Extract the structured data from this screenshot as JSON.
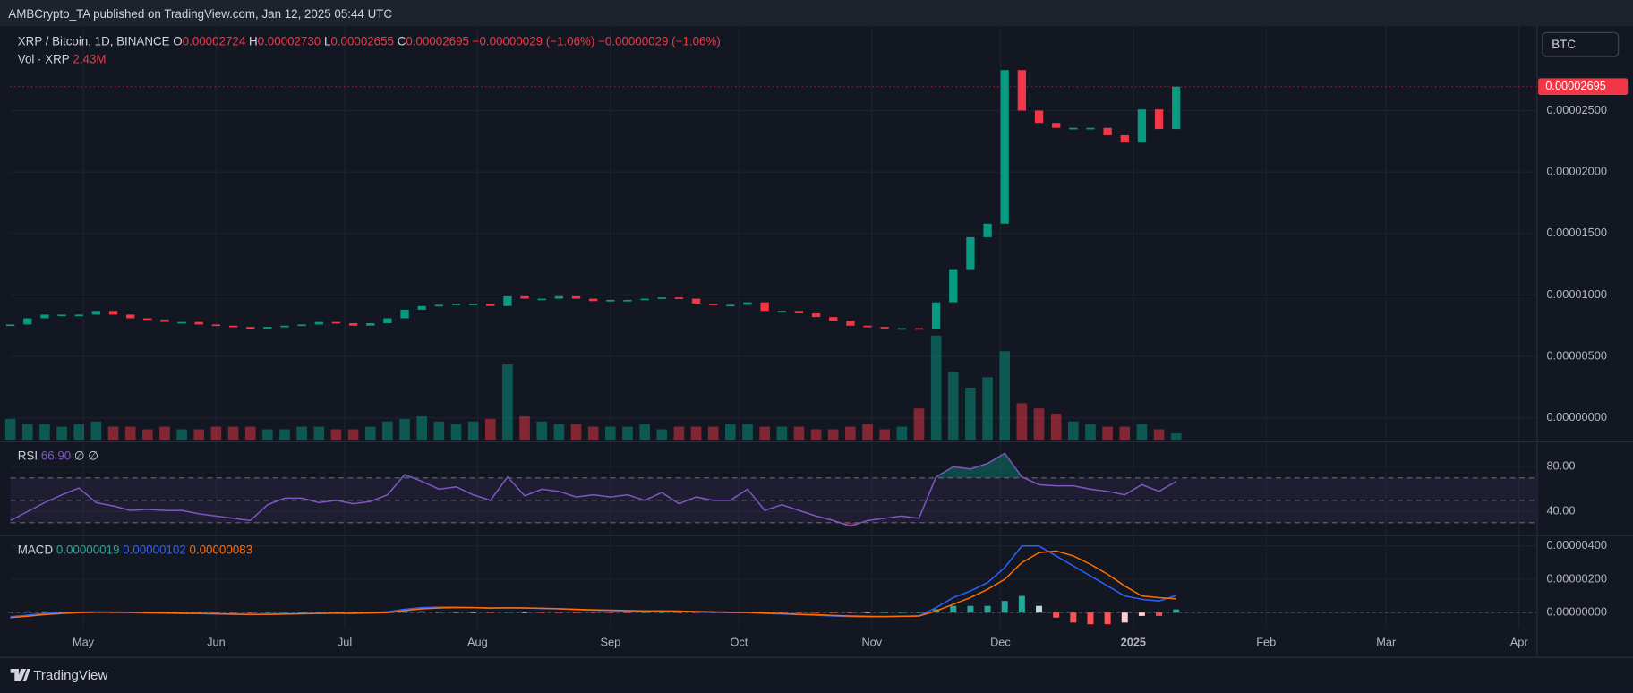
{
  "header": {
    "published": "AMBCrypto_TA published on TradingView.com, Jan 12, 2025 05:44 UTC",
    "symbol": "XRP / Bitcoin, 1D, BINANCE",
    "ohlc": [
      {
        "key": "O",
        "value": "0.00002724"
      },
      {
        "key": "H",
        "value": "0.00002730"
      },
      {
        "key": "L",
        "value": "0.00002655"
      },
      {
        "key": "C",
        "value": "0.00002695"
      }
    ],
    "change": [
      "−0.00000029 (−1.06%)",
      "−0.00000029 (−1.06%)"
    ],
    "volume_label": "Vol · XRP",
    "volume_value": "2.43M",
    "currency_button": "BTC"
  },
  "chart_data": [
    {
      "type": "candlestick",
      "up_color": "#089981",
      "down_color": "#f23645",
      "x": [
        0,
        4,
        8,
        12,
        16,
        20,
        24,
        28,
        32,
        36,
        40,
        44,
        48,
        52,
        56,
        60,
        64,
        68,
        72,
        76,
        80,
        84,
        88,
        92,
        96,
        100,
        104,
        108,
        112,
        116,
        120,
        124,
        128,
        132,
        136,
        140,
        144,
        148,
        152,
        156,
        160,
        164,
        168,
        172,
        176,
        180,
        184,
        188,
        192,
        196,
        200,
        204,
        208,
        212,
        216,
        220,
        224,
        228,
        232,
        236,
        240,
        244,
        248,
        252,
        256,
        260,
        264,
        268,
        272
      ],
      "values": [
        7.6e-06,
        8.1e-06,
        8.4e-06,
        8.4e-06,
        8.4e-06,
        8.7e-06,
        8.4e-06,
        8.1e-06,
        8e-06,
        7.8e-06,
        7.8e-06,
        7.6e-06,
        7.5e-06,
        7.4e-06,
        7.2e-06,
        7.4e-06,
        7.5e-06,
        7.6e-06,
        7.8e-06,
        7.7e-06,
        7.5e-06,
        7.7e-06,
        8.1e-06,
        8.8e-06,
        9.1e-06,
        9.2e-06,
        9.3e-06,
        9.3e-06,
        9.1e-06,
        9.9e-06,
        9.7e-06,
        9.7e-06,
        9.9e-06,
        9.7e-06,
        9.5e-06,
        9.6e-06,
        9.6e-06,
        9.7e-06,
        9.8e-06,
        9.7e-06,
        9.3e-06,
        9.2e-06,
        9.2e-06,
        9.4e-06,
        8.7e-06,
        8.7e-06,
        8.5e-06,
        8.2e-06,
        7.9e-06,
        7.5e-06,
        7.4e-06,
        7.3e-06,
        7.3e-06,
        7.2e-06,
        9.4e-06,
        1.21e-05,
        1.47e-05,
        1.58e-05,
        2.83e-05,
        2.5e-05,
        2.4e-05,
        2.36e-05,
        2.36e-05,
        2.36e-05,
        2.3e-05,
        2.24e-05,
        2.51e-05,
        2.35e-05,
        2.695e-05
      ],
      "volume": [
        8000000.0,
        6000000.0,
        6000000.0,
        5000000.0,
        6000000.0,
        7000000.0,
        5000000.0,
        5000000.0,
        4000000.0,
        5000000.0,
        4000000.0,
        4000000.0,
        5000000.0,
        5000000.0,
        5000000.0,
        4000000.0,
        4000000.0,
        5000000.0,
        5000000.0,
        4000000.0,
        4000000.0,
        5000000.0,
        7000000.0,
        8000000.0,
        9000000.0,
        7000000.0,
        6000000.0,
        7000000.0,
        8000000.0,
        29000000.0,
        9000000.0,
        7000000.0,
        6000000.0,
        6000000.0,
        5000000.0,
        5000000.0,
        5000000.0,
        6000000.0,
        4000000.0,
        5000000.0,
        5000000.0,
        5000000.0,
        6000000.0,
        6000000.0,
        5000000.0,
        5000000.0,
        5000000.0,
        4000000.0,
        4000000.0,
        5000000.0,
        6000000.0,
        4000000.0,
        5000000.0,
        12000000.0,
        40000000.0,
        26000000.0,
        20000000.0,
        24000000.0,
        34000000.0,
        14000000.0,
        12000000.0,
        10000000.0,
        7000000.0,
        6000000.0,
        5000000.0,
        5000000.0,
        6000000.0,
        4000000.0,
        2430000.0
      ],
      "last_price_label": "0.00002695",
      "xlim": [
        0,
        356
      ],
      "xticks": [
        {
          "value": 17,
          "label": "May"
        },
        {
          "value": 48,
          "label": "Jun"
        },
        {
          "value": 78,
          "label": "Jul"
        },
        {
          "value": 109,
          "label": "Aug"
        },
        {
          "value": 140,
          "label": "Sep"
        },
        {
          "value": 170,
          "label": "Oct"
        },
        {
          "value": 201,
          "label": "Nov"
        },
        {
          "value": 231,
          "label": "Dec"
        },
        {
          "value": 262,
          "label": "2025"
        },
        {
          "value": 293,
          "label": "Feb"
        },
        {
          "value": 321,
          "label": "Mar"
        },
        {
          "value": 352,
          "label": "Apr"
        }
      ],
      "ylim": [
        -1.86e-06,
        3.186e-05
      ],
      "yticks": [
        {
          "value": 0,
          "label": "0.00000000"
        },
        {
          "value": 5e-06,
          "label": "0.00000500"
        },
        {
          "value": 1e-05,
          "label": "0.00001000"
        },
        {
          "value": 1.5e-05,
          "label": "0.00001500"
        },
        {
          "value": 2e-05,
          "label": "0.00002000"
        },
        {
          "value": 2.5e-05,
          "label": "0.00002500"
        }
      ],
      "grid": true
    },
    {
      "type": "line",
      "title": "RSI",
      "legend_values": [
        "66.90",
        "∅",
        "∅"
      ],
      "series": [
        {
          "color": "#7e57c2",
          "values": [
            32,
            40,
            48,
            55,
            61,
            48,
            45,
            41,
            42,
            41,
            41,
            38,
            36,
            34,
            32,
            46,
            52,
            52,
            48,
            50,
            47,
            49,
            55,
            73,
            67,
            60,
            62,
            55,
            50,
            71,
            54,
            60,
            58,
            53,
            55,
            53,
            55,
            50,
            57,
            47,
            53,
            50,
            50,
            60,
            41,
            46,
            41,
            36,
            32,
            27,
            32,
            34,
            36,
            34,
            71,
            80,
            78,
            83,
            92,
            71,
            64,
            63,
            63,
            60,
            58,
            55,
            64,
            58,
            66.9
          ]
        }
      ],
      "band_levels": [
        30,
        50,
        70
      ],
      "ylim": [
        19.5,
        101.4
      ],
      "yticks": [
        {
          "value": 80,
          "label": "80.00"
        },
        {
          "value": 40,
          "label": "40.00"
        }
      ],
      "grid": true
    },
    {
      "type": "line",
      "title": "MACD",
      "series": [
        {
          "kind": "histogram",
          "color": "#26a69a",
          "legend_label": "0.00000019",
          "values": [
            5e-08,
            7e-08,
            7e-08,
            5e-08,
            3e-08,
            2e-08,
            -1e-08,
            -2e-08,
            -2e-08,
            -2e-08,
            -1e-08,
            -1e-08,
            -1e-08,
            -1e-08,
            -2e-08,
            0,
            1e-08,
            1e-08,
            1e-08,
            0,
            -1e-08,
            1e-08,
            5e-08,
            8e-08,
            8e-08,
            4e-08,
            2e-08,
            0,
            -2e-08,
            2e-08,
            0,
            -1e-08,
            -1e-08,
            -2e-08,
            -2e-08,
            -2e-08,
            -2e-08,
            0,
            0,
            -1e-08,
            -2e-08,
            -2e-08,
            -2e-08,
            -1e-08,
            -2e-08,
            -2e-08,
            -2e-08,
            -3e-08,
            -3e-08,
            -3e-08,
            -2e-08,
            0,
            1e-08,
            1e-08,
            2e-07,
            4e-07,
            4e-07,
            4e-07,
            7e-07,
            1e-06,
            4e-07,
            -3e-07,
            -6e-07,
            -7e-07,
            -7e-07,
            -6e-07,
            -2e-07,
            -2e-07,
            1.9e-07
          ]
        },
        {
          "kind": "line",
          "color": "#2962ff",
          "legend_label": "0.00000102",
          "values": [
            -2.5e-07,
            -1.5e-07,
            -5e-08,
            0,
            3e-08,
            4e-08,
            2e-08,
            0,
            -2e-08,
            -4e-08,
            -5e-08,
            -6e-08,
            -8e-08,
            -1e-07,
            -1.2e-07,
            -1e-07,
            -8e-08,
            -6e-08,
            -4e-08,
            -4e-08,
            -5e-08,
            -2e-08,
            5e-08,
            2e-07,
            3e-07,
            3.2e-07,
            3.2e-07,
            3e-07,
            2.6e-07,
            3e-07,
            2.8e-07,
            2.5e-07,
            2.2e-07,
            1.8e-07,
            1.4e-07,
            1.2e-07,
            1e-07,
            1e-07,
            1e-07,
            8e-08,
            4e-08,
            2e-08,
            0,
            0,
            -5e-08,
            -8e-08,
            -1.2e-07,
            -1.6e-07,
            -2e-07,
            -2.4e-07,
            -2.5e-07,
            -2.4e-07,
            -2.2e-07,
            -2e-07,
            3e-07,
            9e-07,
            1.3e-06,
            1.8e-06,
            2.7e-06,
            4e-06,
            4e-06,
            3.4e-06,
            2.8e-06,
            2.2e-06,
            1.6e-06,
            1e-06,
            8e-07,
            7e-07,
            1.02e-06
          ]
        },
        {
          "kind": "line",
          "color": "#ff6d00",
          "legend_label": "0.00000083",
          "values": [
            -3e-07,
            -2.2e-07,
            -1.2e-07,
            -5e-08,
            0,
            2e-08,
            3e-08,
            2e-08,
            0,
            -2e-08,
            -4e-08,
            -5e-08,
            -7e-08,
            -9e-08,
            -1e-07,
            -1e-07,
            -9e-08,
            -7e-08,
            -5e-08,
            -4e-08,
            -4e-08,
            -3e-08,
            0,
            1.2e-07,
            2.2e-07,
            2.8e-07,
            3e-07,
            3e-07,
            2.8e-07,
            2.8e-07,
            2.8e-07,
            2.6e-07,
            2.3e-07,
            2e-07,
            1.6e-07,
            1.4e-07,
            1.2e-07,
            1e-07,
            1e-07,
            9e-08,
            6e-08,
            4e-08,
            2e-08,
            1e-08,
            -3e-08,
            -6e-08,
            -1e-07,
            -1.3e-07,
            -1.7e-07,
            -2.1e-07,
            -2.3e-07,
            -2.4e-07,
            -2.3e-07,
            -2.1e-07,
            1e-07,
            5e-07,
            9e-07,
            1.4e-06,
            2e-06,
            3e-06,
            3.6e-06,
            3.7e-06,
            3.4e-06,
            2.9e-06,
            2.3e-06,
            1.6e-06,
            1e-06,
            9e-07,
            8.3e-07
          ]
        }
      ],
      "ylim": [
        -9.4e-07,
        4.56e-06
      ],
      "yticks": [
        {
          "value": 4e-06,
          "label": "0.00000400"
        },
        {
          "value": 2e-06,
          "label": "0.00000200"
        },
        {
          "value": 0,
          "label": "0.00000000"
        }
      ],
      "zero_line": true,
      "grid": true
    }
  ],
  "footer": {
    "brand": "TradingView"
  }
}
